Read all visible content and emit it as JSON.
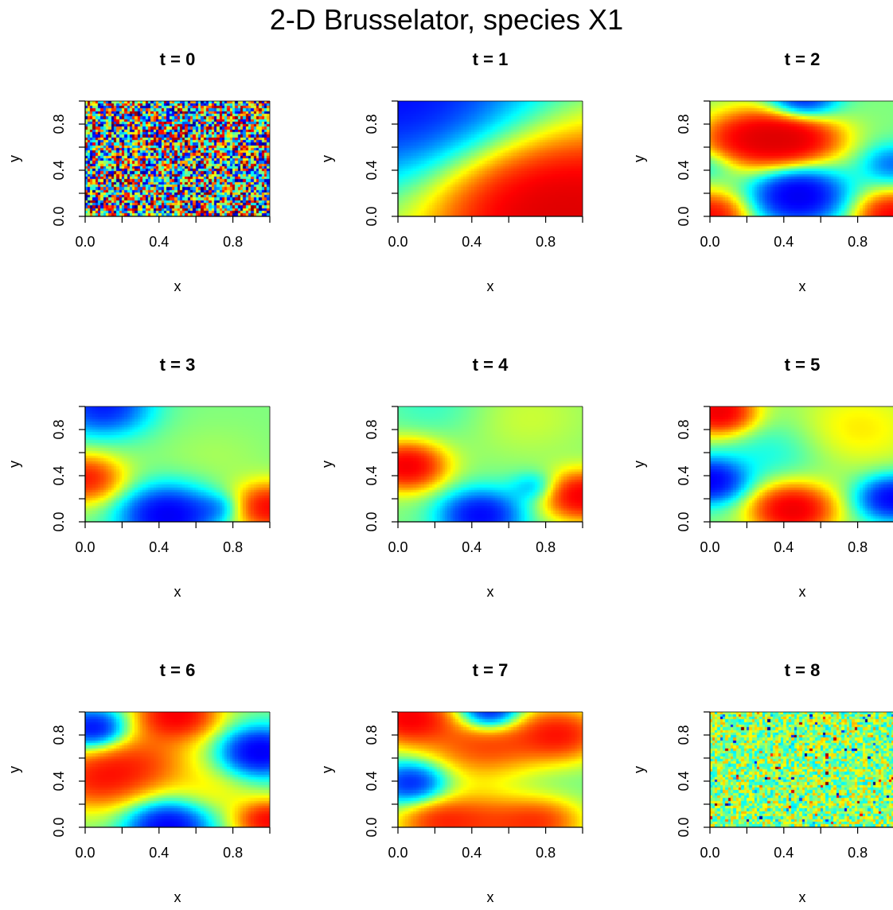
{
  "title": "2-D Brusselator, species X1",
  "colors": {
    "axis": "#000000",
    "background": "#ffffff",
    "palette": "jet"
  },
  "chart_data": {
    "type": "heatmap",
    "colorscale": "jet (dark blue → cyan → yellow → red → dark red)",
    "xlabel": "x",
    "ylabel": "y",
    "xlim": [
      0,
      1
    ],
    "ylim": [
      0,
      1
    ],
    "x_ticks": [
      "0.0",
      "0.4",
      "0.8"
    ],
    "y_ticks": [
      "0.0",
      "0.4",
      "0.8"
    ],
    "grid": false,
    "legend": "none",
    "panels": [
      {
        "title": "t =  0",
        "t": 0,
        "pattern": "random noise, full color range",
        "blobs": []
      },
      {
        "title": "t =  1",
        "t": 1,
        "pattern": "smooth gradient: low in upper-left, high in lower-right",
        "blobs": [
          [
            1.05,
            -0.05,
            0.55,
            1.9
          ],
          [
            0.0,
            1.05,
            0.55,
            -1.5
          ],
          [
            0.7,
            0.1,
            0.35,
            0.6
          ]
        ]
      },
      {
        "title": "t =  2",
        "t": 2,
        "pattern": "horizontal high band at y≈0.65, low spots at top and bottom center, high at bottom corners",
        "blobs": [
          [
            0.35,
            0.67,
            0.18,
            1.8
          ],
          [
            0.12,
            0.67,
            0.15,
            0.7
          ],
          [
            0.55,
            0.67,
            0.15,
            0.7
          ],
          [
            0.48,
            0.18,
            0.17,
            -1.8
          ],
          [
            0.5,
            1.0,
            0.13,
            -1.4
          ],
          [
            0.0,
            0.0,
            0.14,
            1.5
          ],
          [
            1.0,
            0.0,
            0.14,
            1.6
          ],
          [
            1.0,
            0.45,
            0.12,
            -0.8
          ],
          [
            0.0,
            0.45,
            0.1,
            -0.4
          ]
        ]
      },
      {
        "title": "t =  3",
        "t": 3,
        "pattern": "low at upper-left and bottom center, high at left and bottom-right",
        "blobs": [
          [
            0.45,
            0.05,
            0.17,
            -1.7
          ],
          [
            0.0,
            0.37,
            0.14,
            1.3
          ],
          [
            1.0,
            0.12,
            0.14,
            1.5
          ],
          [
            0.1,
            1.0,
            0.17,
            -1.3
          ],
          [
            0.75,
            0.12,
            0.09,
            -0.5
          ],
          [
            0.7,
            0.55,
            0.2,
            0.1
          ]
        ]
      },
      {
        "title": "t =  4",
        "t": 4,
        "pattern": "high at left and bottom-right, low at bottom center",
        "blobs": [
          [
            0.05,
            0.48,
            0.14,
            1.7
          ],
          [
            1.0,
            0.22,
            0.14,
            1.7
          ],
          [
            0.45,
            0.05,
            0.15,
            -1.5
          ],
          [
            0.75,
            0.3,
            0.09,
            -0.6
          ],
          [
            0.2,
            1.0,
            0.2,
            -0.2
          ],
          [
            0.7,
            0.9,
            0.25,
            0.2
          ]
        ]
      },
      {
        "title": "t =  5",
        "t": 5,
        "pattern": "high at upper-left and bottom center, low at left and right",
        "blobs": [
          [
            0.05,
            0.95,
            0.13,
            1.8
          ],
          [
            0.45,
            0.1,
            0.15,
            1.8
          ],
          [
            0.0,
            0.35,
            0.13,
            -1.6
          ],
          [
            1.0,
            0.2,
            0.13,
            -1.6
          ],
          [
            0.35,
            0.6,
            0.2,
            -0.3
          ],
          [
            0.8,
            0.8,
            0.25,
            0.4
          ]
        ]
      },
      {
        "title": "t =  6",
        "t": 6,
        "pattern": "diagonal high band from lower-left to top, low at corners and bottom center",
        "blobs": [
          [
            0.5,
            0.98,
            0.15,
            1.6
          ],
          [
            0.05,
            0.4,
            0.18,
            1.0
          ],
          [
            0.3,
            0.55,
            0.2,
            0.9
          ],
          [
            1.0,
            0.05,
            0.12,
            1.5
          ],
          [
            0.05,
            0.85,
            0.12,
            -1.5
          ],
          [
            0.95,
            0.65,
            0.14,
            -1.7
          ],
          [
            0.45,
            0.0,
            0.15,
            -1.6
          ],
          [
            0.7,
            0.3,
            0.15,
            0.3
          ]
        ]
      },
      {
        "title": "t =  7",
        "t": 7,
        "pattern": "high band near top, low blob at top center and left, high band at bottom",
        "blobs": [
          [
            0.05,
            0.95,
            0.15,
            1.5
          ],
          [
            0.5,
            0.72,
            0.25,
            1.2
          ],
          [
            0.9,
            0.8,
            0.15,
            1.1
          ],
          [
            0.5,
            1.0,
            0.12,
            -1.8
          ],
          [
            0.08,
            0.38,
            0.13,
            -1.3
          ],
          [
            0.5,
            0.05,
            0.2,
            1.0
          ],
          [
            0.8,
            0.05,
            0.15,
            0.9
          ],
          [
            0.2,
            0.05,
            0.15,
            0.9
          ],
          [
            0.6,
            0.35,
            0.25,
            -0.4
          ]
        ]
      },
      {
        "title": "t =  8",
        "t": 8,
        "pattern": "noise around mid range (mostly cyan/green/yellow)",
        "blobs": []
      }
    ]
  }
}
